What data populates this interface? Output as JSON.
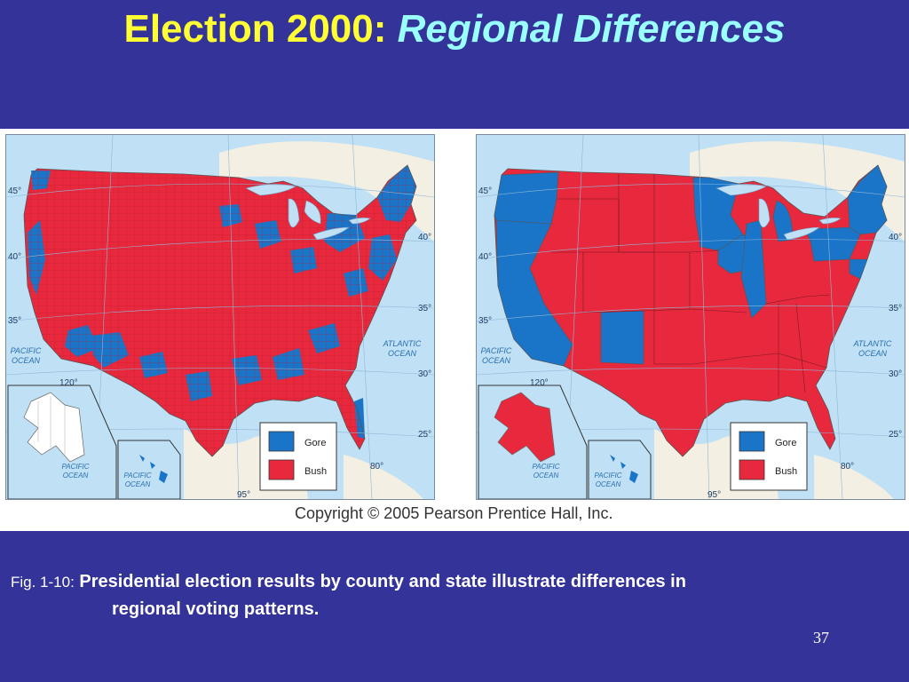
{
  "slide": {
    "title_main": "Election 2000:",
    "title_accent": "Regional Differences",
    "copyright": "Copyright © 2005 Pearson Prentice Hall, Inc.",
    "caption_label": "Fig. 1-10:",
    "caption_line1": "Presidential election results by county and state illustrate differences in",
    "caption_line2": "regional voting patterns.",
    "page_number": "37"
  },
  "map": {
    "latitudes": [
      "45°",
      "40°",
      "35°",
      "30°",
      "25°"
    ],
    "longitudes": [
      "120°",
      "95°",
      "80°"
    ],
    "ocean_pacific": [
      "PACIFIC",
      "OCEAN"
    ],
    "ocean_atlantic": [
      "ATLANTIC",
      "OCEAN"
    ],
    "inset_ocean": [
      "PACIFIC",
      "OCEAN"
    ],
    "legend": [
      {
        "label": "Gore",
        "color": "#1a75c9"
      },
      {
        "label": "Bush",
        "color": "#e8283c"
      }
    ],
    "colors": {
      "gore": "#1a75c9",
      "bush": "#e8283c",
      "water": "#bfe0f5",
      "land": "#f3efe2"
    }
  }
}
